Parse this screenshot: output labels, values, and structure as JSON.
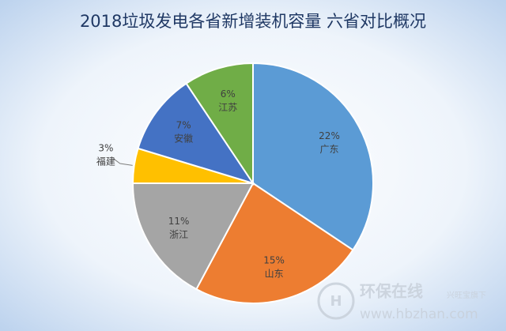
{
  "chart_data": {
    "type": "pie",
    "title": "2018垃圾发电各省新增装机容量 六省对比概况",
    "categories": [
      "广东",
      "山东",
      "浙江",
      "福建",
      "安徽",
      "江苏"
    ],
    "values": [
      22,
      15,
      11,
      3,
      7,
      6
    ],
    "value_labels": [
      "22%",
      "15%",
      "11%",
      "3%",
      "7%",
      "6%"
    ],
    "colors": [
      "#5b9bd5",
      "#ed7d31",
      "#a5a5a5",
      "#ffc000",
      "#4472c4",
      "#70ad47"
    ]
  },
  "watermark": {
    "brand": "环保在线",
    "tagline": "兴旺宝旗下",
    "url": "www.hbzhan.com"
  }
}
